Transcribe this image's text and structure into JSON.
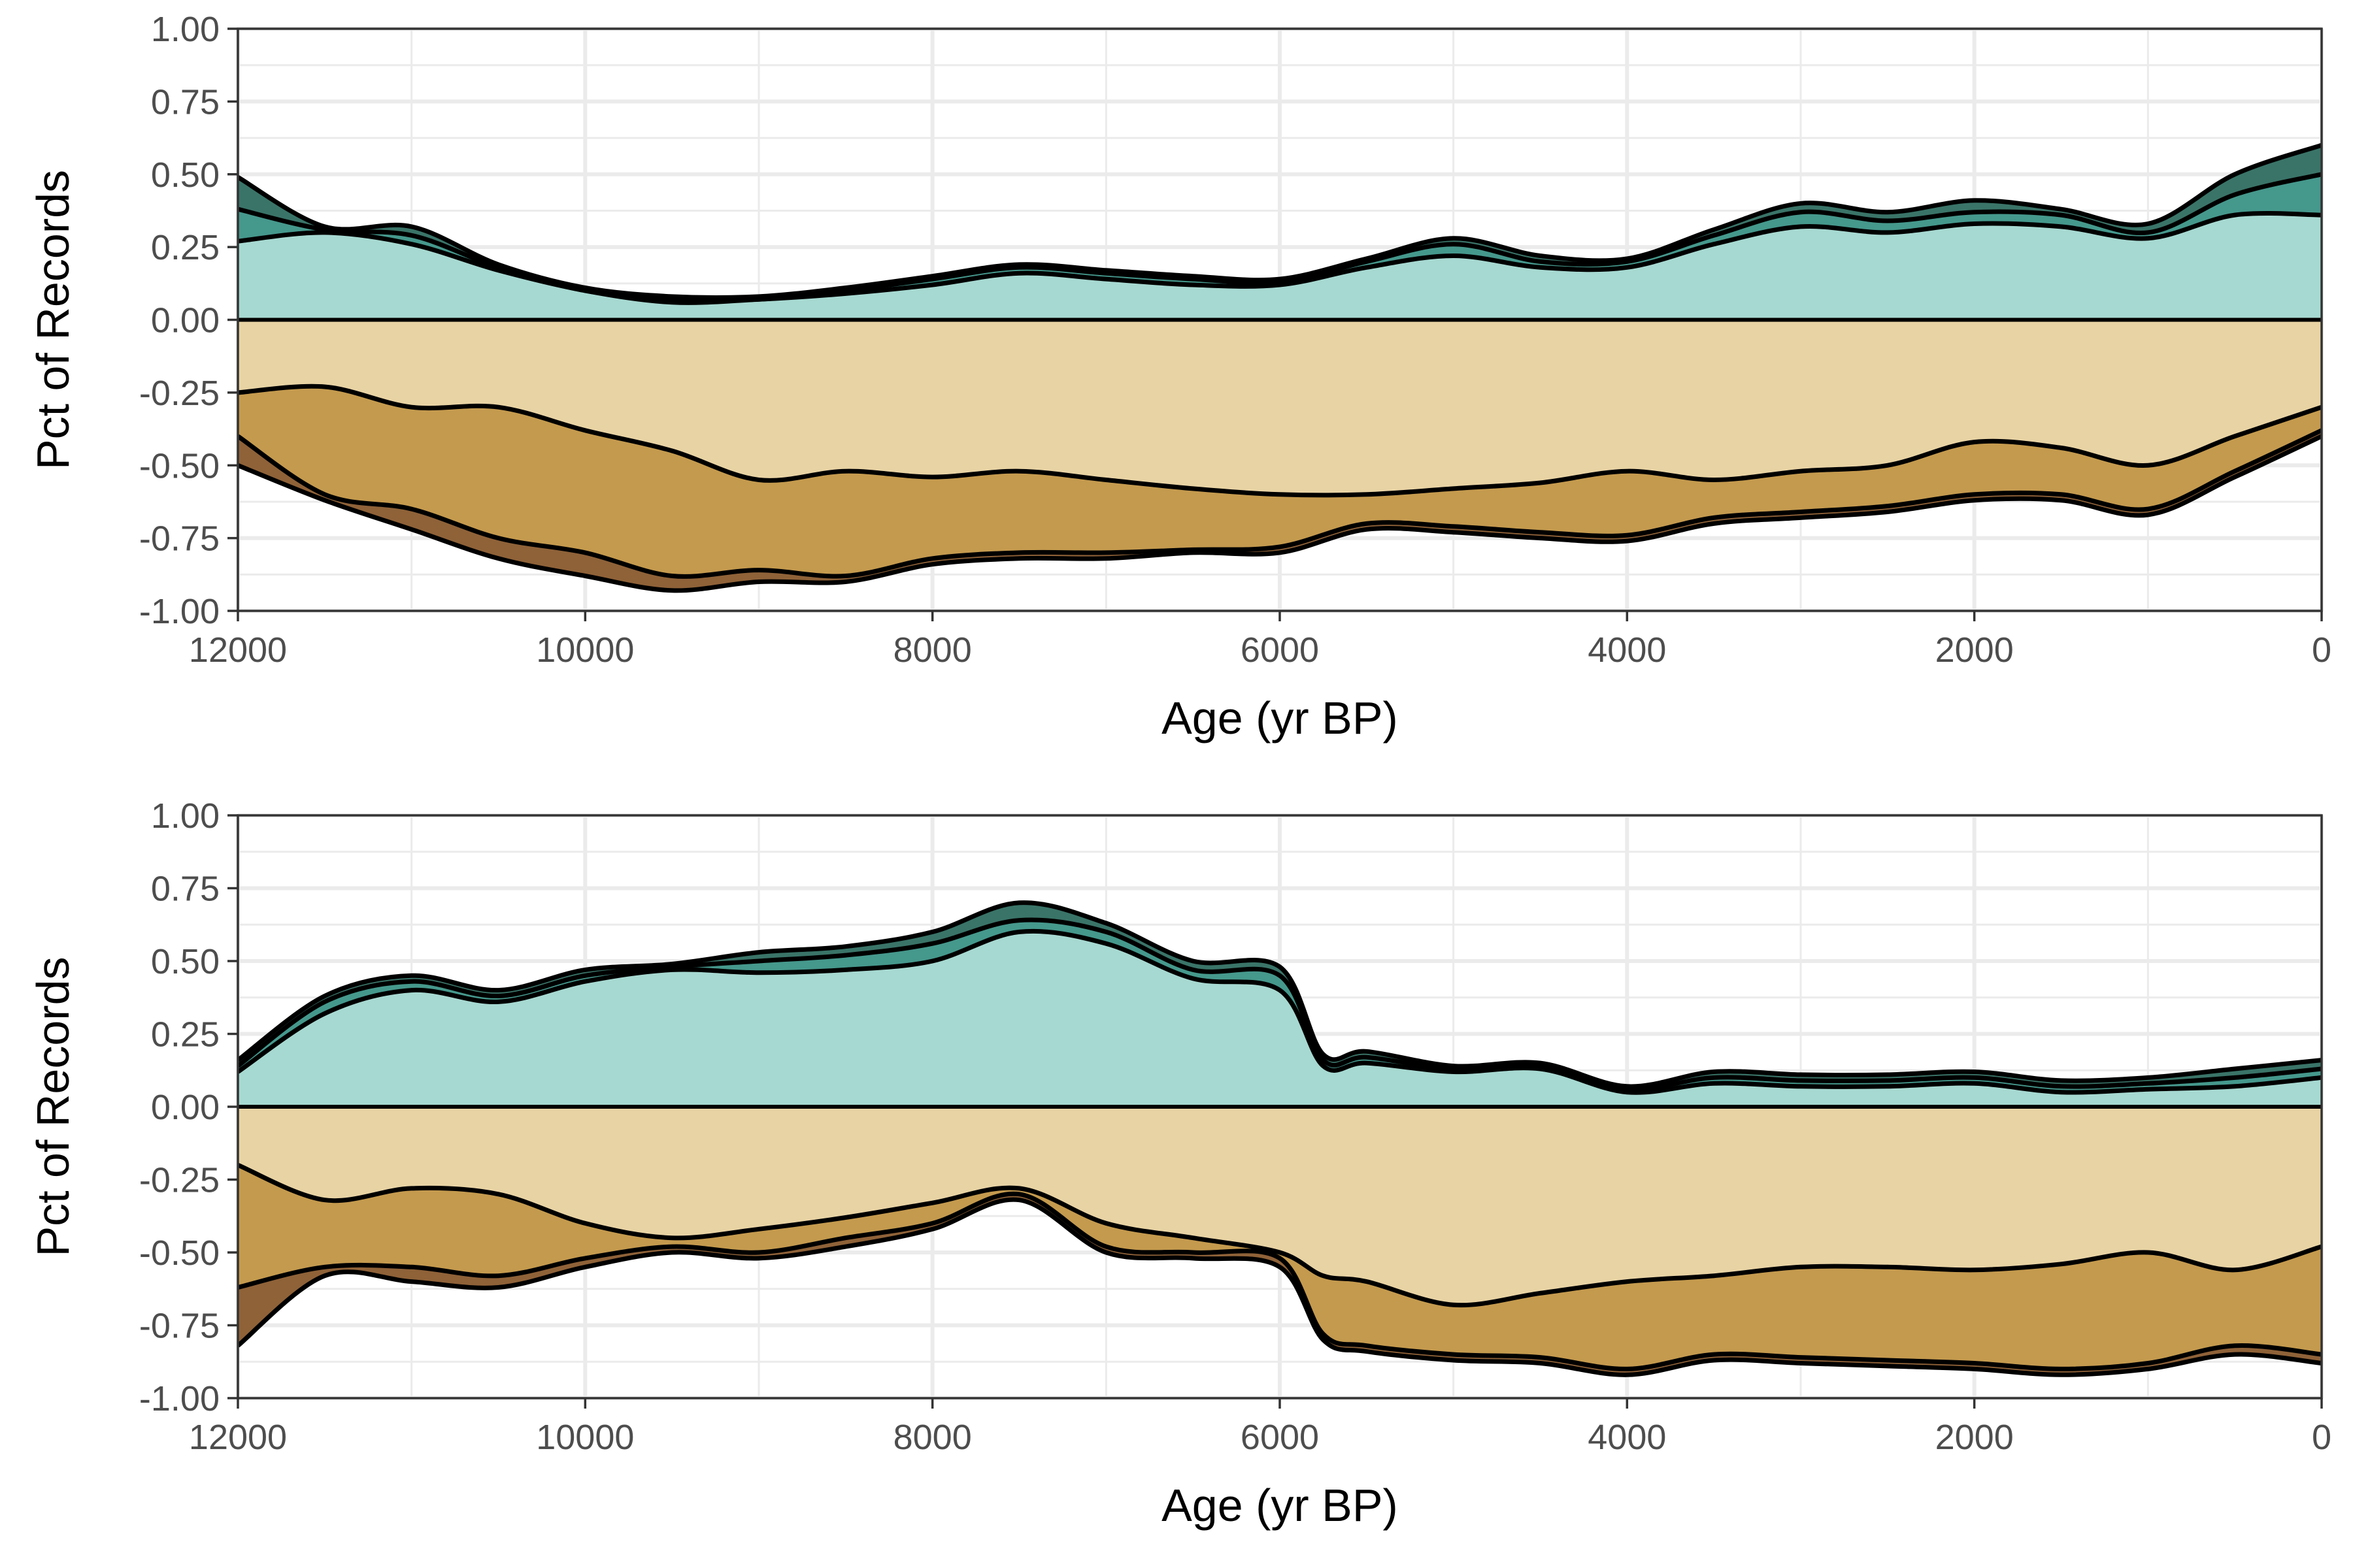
{
  "colors": {
    "pos_light": "#a6d9d1",
    "pos_mid": "#45988c",
    "pos_dark": "#3a7468",
    "neg_light": "#e8d3a4",
    "neg_mid": "#c49a4e",
    "neg_dark": "#8f6238",
    "grid": "#ebebeb",
    "line": "#000000"
  },
  "chart_data": [
    {
      "type": "area",
      "title": "",
      "xlabel": "Age (yr BP)",
      "ylabel": "Pct of Records",
      "xlim": [
        12000,
        0
      ],
      "ylim": [
        -1,
        1
      ],
      "x_ticks": [
        "12000",
        "10000",
        "8000",
        "6000",
        "4000",
        "2000",
        "0"
      ],
      "y_ticks": [
        "1.00",
        "0.75",
        "0.50",
        "0.25",
        "0.00",
        "-0.25",
        "-0.50",
        "-0.75",
        "-1.00"
      ],
      "grid": true,
      "x": [
        12000,
        11500,
        11000,
        10500,
        10000,
        9500,
        9000,
        8500,
        8000,
        7500,
        7000,
        6500,
        6000,
        5500,
        5000,
        4500,
        4000,
        3500,
        3000,
        2500,
        2000,
        1500,
        1000,
        500,
        0
      ],
      "series": [
        {
          "values": [
            0.27,
            0.3,
            0.26,
            0.17,
            0.1,
            0.06,
            0.07,
            0.09,
            0.12,
            0.16,
            0.14,
            0.12,
            0.12,
            0.18,
            0.22,
            0.18,
            0.18,
            0.26,
            0.32,
            0.3,
            0.33,
            0.32,
            0.28,
            0.36,
            0.36
          ]
        },
        {
          "values": [
            0.38,
            0.31,
            0.29,
            0.18,
            0.1,
            0.07,
            0.07,
            0.1,
            0.14,
            0.18,
            0.16,
            0.14,
            0.13,
            0.2,
            0.26,
            0.2,
            0.2,
            0.29,
            0.37,
            0.34,
            0.37,
            0.36,
            0.3,
            0.43,
            0.5
          ]
        },
        {
          "values": [
            0.49,
            0.32,
            0.32,
            0.19,
            0.11,
            0.08,
            0.08,
            0.11,
            0.15,
            0.19,
            0.17,
            0.15,
            0.14,
            0.21,
            0.28,
            0.22,
            0.21,
            0.31,
            0.4,
            0.37,
            0.41,
            0.38,
            0.33,
            0.5,
            0.6
          ]
        },
        {
          "values": [
            -0.25,
            -0.23,
            -0.3,
            -0.3,
            -0.38,
            -0.45,
            -0.55,
            -0.52,
            -0.54,
            -0.52,
            -0.55,
            -0.58,
            -0.6,
            -0.6,
            -0.58,
            -0.56,
            -0.52,
            -0.55,
            -0.52,
            -0.5,
            -0.42,
            -0.44,
            -0.5,
            -0.4,
            -0.3
          ]
        },
        {
          "values": [
            -0.4,
            -0.6,
            -0.65,
            -0.75,
            -0.8,
            -0.88,
            -0.86,
            -0.88,
            -0.82,
            -0.8,
            -0.8,
            -0.79,
            -0.78,
            -0.7,
            -0.71,
            -0.73,
            -0.74,
            -0.68,
            -0.66,
            -0.64,
            -0.6,
            -0.6,
            -0.65,
            -0.52,
            -0.38
          ]
        },
        {
          "values": [
            -0.5,
            -0.62,
            -0.72,
            -0.82,
            -0.88,
            -0.93,
            -0.9,
            -0.9,
            -0.84,
            -0.82,
            -0.82,
            -0.8,
            -0.8,
            -0.72,
            -0.73,
            -0.75,
            -0.76,
            -0.7,
            -0.68,
            -0.66,
            -0.62,
            -0.62,
            -0.67,
            -0.54,
            -0.4
          ]
        }
      ]
    },
    {
      "type": "area",
      "title": "",
      "xlabel": "Age (yr BP)",
      "ylabel": "Pct of Records",
      "xlim": [
        12000,
        0
      ],
      "ylim": [
        -1,
        1
      ],
      "x_ticks": [
        "12000",
        "10000",
        "8000",
        "6000",
        "4000",
        "2000",
        "0"
      ],
      "y_ticks": [
        "1.00",
        "0.75",
        "0.50",
        "0.25",
        "0.00",
        "-0.25",
        "-0.50",
        "-0.75",
        "-1.00"
      ],
      "grid": true,
      "x": [
        12000,
        11500,
        11000,
        10500,
        10000,
        9500,
        9000,
        8500,
        8000,
        7500,
        7000,
        6500,
        6000,
        5750,
        5500,
        5000,
        4500,
        4000,
        3500,
        3000,
        2500,
        2000,
        1500,
        1000,
        500,
        0
      ],
      "series": [
        {
          "values": [
            0.12,
            0.32,
            0.4,
            0.36,
            0.43,
            0.47,
            0.46,
            0.47,
            0.5,
            0.6,
            0.56,
            0.44,
            0.4,
            0.14,
            0.15,
            0.12,
            0.13,
            0.05,
            0.08,
            0.07,
            0.07,
            0.08,
            0.05,
            0.06,
            0.07,
            0.1
          ]
        },
        {
          "values": [
            0.14,
            0.36,
            0.43,
            0.38,
            0.45,
            0.48,
            0.5,
            0.52,
            0.56,
            0.64,
            0.6,
            0.47,
            0.45,
            0.16,
            0.17,
            0.13,
            0.14,
            0.06,
            0.1,
            0.09,
            0.09,
            0.1,
            0.07,
            0.08,
            0.1,
            0.13
          ]
        },
        {
          "values": [
            0.16,
            0.38,
            0.45,
            0.4,
            0.47,
            0.49,
            0.53,
            0.55,
            0.6,
            0.7,
            0.63,
            0.5,
            0.48,
            0.18,
            0.19,
            0.14,
            0.15,
            0.07,
            0.12,
            0.11,
            0.11,
            0.12,
            0.09,
            0.1,
            0.13,
            0.16
          ]
        },
        {
          "values": [
            -0.2,
            -0.32,
            -0.28,
            -0.3,
            -0.4,
            -0.45,
            -0.42,
            -0.38,
            -0.33,
            -0.28,
            -0.4,
            -0.45,
            -0.5,
            -0.58,
            -0.6,
            -0.68,
            -0.64,
            -0.6,
            -0.58,
            -0.55,
            -0.55,
            -0.56,
            -0.54,
            -0.5,
            -0.56,
            -0.48
          ]
        },
        {
          "values": [
            -0.62,
            -0.55,
            -0.55,
            -0.58,
            -0.52,
            -0.48,
            -0.5,
            -0.45,
            -0.4,
            -0.3,
            -0.48,
            -0.5,
            -0.52,
            -0.78,
            -0.82,
            -0.85,
            -0.86,
            -0.9,
            -0.85,
            -0.86,
            -0.87,
            -0.88,
            -0.9,
            -0.88,
            -0.82,
            -0.85
          ]
        },
        {
          "values": [
            -0.82,
            -0.58,
            -0.6,
            -0.62,
            -0.55,
            -0.5,
            -0.52,
            -0.48,
            -0.42,
            -0.32,
            -0.5,
            -0.52,
            -0.55,
            -0.8,
            -0.84,
            -0.87,
            -0.88,
            -0.92,
            -0.87,
            -0.88,
            -0.89,
            -0.9,
            -0.92,
            -0.9,
            -0.85,
            -0.88
          ]
        }
      ]
    }
  ]
}
